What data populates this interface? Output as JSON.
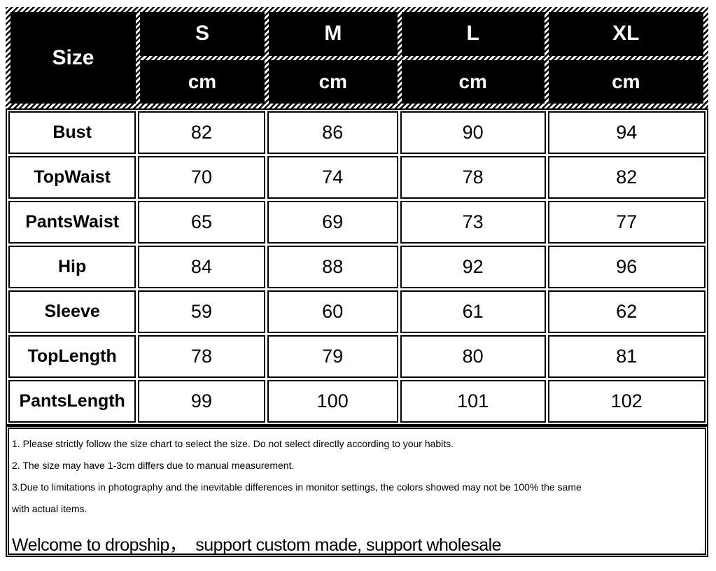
{
  "chart_data": {
    "type": "table",
    "corner_label": "Size",
    "unit": "cm",
    "sizes": [
      "S",
      "M",
      "L",
      "XL"
    ],
    "rows": [
      {
        "label": "Bust",
        "values": [
          "82",
          "86",
          "90",
          "94"
        ]
      },
      {
        "label": "TopWaist",
        "values": [
          "70",
          "74",
          "78",
          "82"
        ]
      },
      {
        "label": "PantsWaist",
        "values": [
          "65",
          "69",
          "73",
          "77"
        ]
      },
      {
        "label": "Hip",
        "values": [
          "84",
          "88",
          "92",
          "96"
        ]
      },
      {
        "label": "Sleeve",
        "values": [
          "59",
          "60",
          "61",
          "62"
        ]
      },
      {
        "label": "TopLength",
        "values": [
          "78",
          "79",
          "80",
          "81"
        ]
      },
      {
        "label": "PantsLength",
        "values": [
          "99",
          "100",
          "101",
          "102"
        ]
      }
    ],
    "layout": {
      "header_style": "black-with-hatched-borders",
      "grid": "double-line-cells"
    }
  },
  "notes": [
    "1. Please strictly follow the size chart to select the size. Do not select directly according to your habits.",
    "2. The size may have 1-3cm differs due to manual measurement.",
    "3.Due to limitations in photography and the inevitable differences in monitor settings, the colors showed may not be 100% the same",
    "with actual items."
  ],
  "footer": "Welcome to dropship，  support custom made, support wholesale",
  "colors": {
    "header_bg": "#000000",
    "header_text": "#ffffff",
    "body_bg": "#ffffff",
    "body_text": "#000000",
    "border": "#000000"
  }
}
